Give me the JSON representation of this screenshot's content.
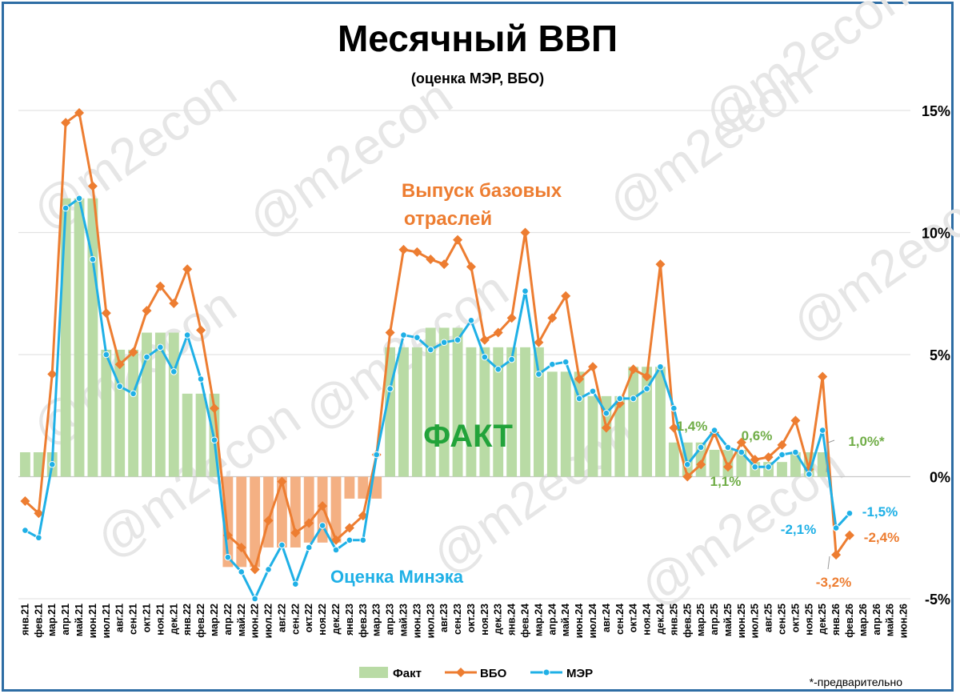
{
  "watermark": "@m2econ",
  "footnote": "*-предварительно",
  "colors": {
    "fakt": "#b9dba5",
    "fakt_neg": "#f4b083",
    "vbo": "#ed7d31",
    "mer": "#1fb0e6",
    "green_text": "#70ad47",
    "big_fakt": "#22a33a"
  },
  "chart_data": {
    "type": "bar+line",
    "title": "Месячный ВВП",
    "subtitle": "(оценка МЭР, ВБО)",
    "ylim": [
      -5,
      15
    ],
    "yticks": [
      "-5%",
      "0%",
      "5%",
      "10%",
      "15%"
    ],
    "yaxis_side": "right",
    "grid": true,
    "legend_position": "bottom",
    "categories": [
      "янв.21",
      "фев.21",
      "мар.21",
      "апр.21",
      "май.21",
      "июн.21",
      "июл.21",
      "авг.21",
      "сен.21",
      "окт.21",
      "ноя.21",
      "дек.21",
      "янв.22",
      "фев.22",
      "мар.22",
      "апр.22",
      "май.22",
      "июн.22",
      "июл.22",
      "авг.22",
      "сен.22",
      "окт.22",
      "ноя.22",
      "дек.22",
      "янв.23",
      "фев.23",
      "мар.23",
      "апр.23",
      "май.23",
      "июн.23",
      "июл.23",
      "авг.23",
      "сен.23",
      "окт.23",
      "ноя.23",
      "дек.23",
      "янв.24",
      "фев.24",
      "мар.24",
      "апр.24",
      "май.24",
      "июн.24",
      "июл.24",
      "авг.24",
      "сен.24",
      "окт.24",
      "ноя.24",
      "дек.24",
      "янв.25",
      "фев.25",
      "мар.25",
      "апр.25",
      "май.25",
      "июн.25",
      "июл.25",
      "авг.25",
      "сен.25",
      "окт.25",
      "ноя.25",
      "дек.25",
      "янв.26",
      "фев.26",
      "мар.26",
      "апр.26",
      "май.26",
      "июн.26"
    ],
    "series": [
      {
        "name": "Факт",
        "kind": "bar",
        "values": [
          1.0,
          1.0,
          1.0,
          11.4,
          11.4,
          11.4,
          5.2,
          5.2,
          5.2,
          5.9,
          5.9,
          5.9,
          3.4,
          3.4,
          3.4,
          -3.7,
          -3.7,
          -3.7,
          -2.9,
          -2.9,
          -2.9,
          -2.7,
          -2.7,
          -2.7,
          -0.9,
          -0.9,
          -0.9,
          5.3,
          5.3,
          5.3,
          6.1,
          6.1,
          6.1,
          5.3,
          5.3,
          5.3,
          5.3,
          5.3,
          5.3,
          4.3,
          4.3,
          4.3,
          3.3,
          3.3,
          3.3,
          4.5,
          4.5,
          4.5,
          1.4,
          1.4,
          1.4,
          1.1,
          1.1,
          1.1,
          0.6,
          0.6,
          0.6,
          1.0,
          1.0,
          1.0,
          null,
          null,
          null,
          null,
          null,
          null
        ]
      },
      {
        "name": "ВБО",
        "kind": "line",
        "values": [
          -1.0,
          -1.5,
          4.2,
          14.5,
          14.9,
          11.9,
          6.7,
          4.6,
          5.1,
          6.8,
          7.8,
          7.1,
          8.5,
          6.0,
          2.8,
          -2.4,
          -2.9,
          -3.8,
          -1.8,
          -0.2,
          -2.3,
          -1.9,
          -1.2,
          -2.6,
          -2.1,
          -1.6,
          0.9,
          5.9,
          9.3,
          9.2,
          8.9,
          8.7,
          9.7,
          8.6,
          5.6,
          5.9,
          6.5,
          10.0,
          5.5,
          6.5,
          7.4,
          4.0,
          4.5,
          2.0,
          3.0,
          4.4,
          4.1,
          8.7,
          2.0,
          0.0,
          0.5,
          1.8,
          0.4,
          1.4,
          0.7,
          0.8,
          1.3,
          2.3,
          0.3,
          4.1,
          -3.2,
          -2.4,
          null,
          null,
          null,
          null
        ]
      },
      {
        "name": "МЭР",
        "kind": "line",
        "values": [
          -2.2,
          -2.5,
          0.5,
          11.0,
          11.4,
          8.9,
          5.0,
          3.7,
          3.4,
          4.9,
          5.3,
          4.3,
          5.8,
          4.0,
          1.5,
          -3.3,
          -3.9,
          -5.0,
          -3.8,
          -2.8,
          -4.4,
          -2.9,
          -2.0,
          -3.0,
          -2.6,
          -2.6,
          0.9,
          3.6,
          5.8,
          5.7,
          5.2,
          5.5,
          5.6,
          6.4,
          4.9,
          4.4,
          4.8,
          7.6,
          4.2,
          4.6,
          4.7,
          3.2,
          3.5,
          2.6,
          3.2,
          3.2,
          3.6,
          4.5,
          2.8,
          0.5,
          1.2,
          1.9,
          1.2,
          1.0,
          0.4,
          0.4,
          0.9,
          1.0,
          0.1,
          1.9,
          -2.1,
          -1.5,
          null,
          null,
          null,
          null
        ]
      }
    ],
    "annotations": [
      {
        "text": "Выпуск базовых",
        "color": "vbo"
      },
      {
        "text": "отраслей",
        "color": "vbo"
      },
      {
        "text": "ФАКТ",
        "color": "big_fakt"
      },
      {
        "text": "Оценка Минэка",
        "color": "mer"
      },
      {
        "text": "1,4%",
        "color": "green_text"
      },
      {
        "text": "0,6%",
        "color": "green_text"
      },
      {
        "text": "1,1%",
        "color": "green_text"
      },
      {
        "text": "1,0%*",
        "color": "green_text"
      },
      {
        "text": "-1,5%",
        "color": "mer"
      },
      {
        "text": "-2,1%",
        "color": "mer"
      },
      {
        "text": "-2,4%",
        "color": "vbo"
      },
      {
        "text": "-3,2%",
        "color": "vbo"
      }
    ]
  }
}
